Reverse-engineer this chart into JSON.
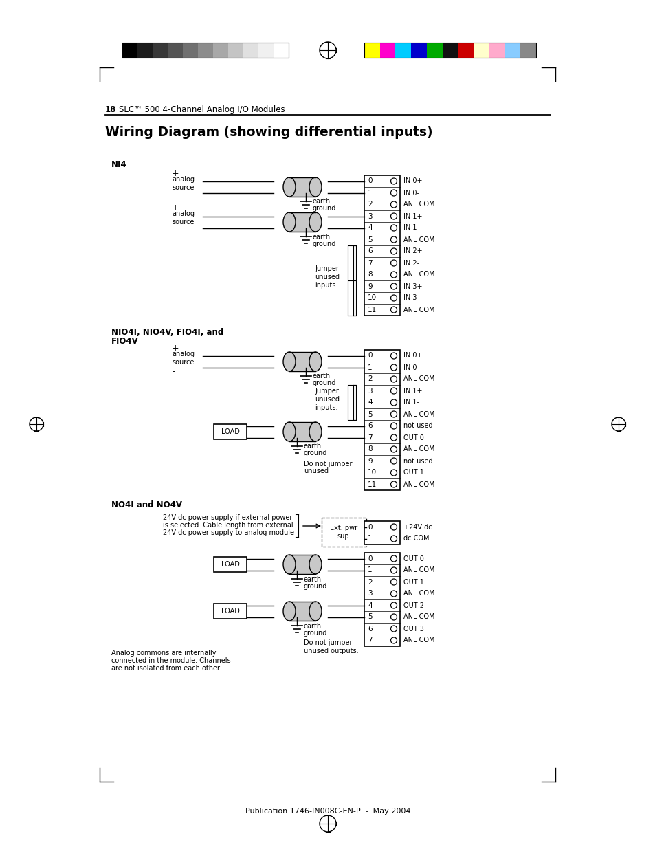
{
  "title": "Wiring Diagram (showing differential inputs)",
  "page_header_num": "18",
  "page_header_text": "SLC™ 500 4-Channel Analog I/O Modules",
  "page_footer": "Publication 1746-IN008C-EN-P  -  May 2004",
  "background_color": "#ffffff",
  "section1_label": "NI4",
  "section2_label": "NIO4I, NIO4V, FIO4I, and\nFIO4V",
  "section3_label": "NO4I and NO4V",
  "ni4_terminals": [
    "0",
    "1",
    "2",
    "3",
    "4",
    "5",
    "6",
    "7",
    "8",
    "9",
    "10",
    "11"
  ],
  "ni4_labels": [
    "IN 0+",
    "IN 0-",
    "ANL COM",
    "IN 1+",
    "IN 1-",
    "ANL COM",
    "IN 2+",
    "IN 2-",
    "ANL COM",
    "IN 3+",
    "IN 3-",
    "ANL COM"
  ],
  "nio4_terminals": [
    "0",
    "1",
    "2",
    "3",
    "4",
    "5",
    "6",
    "7",
    "8",
    "9",
    "10",
    "11"
  ],
  "nio4_labels": [
    "IN 0+",
    "IN 0-",
    "ANL COM",
    "IN 1+",
    "IN 1-",
    "ANL COM",
    "not used",
    "OUT 0",
    "ANL COM",
    "not used",
    "OUT 1",
    "ANL COM"
  ],
  "no4_power_terminals": [
    "0",
    "1"
  ],
  "no4_power_labels": [
    "+24V dc",
    "dc COM"
  ],
  "no4_terminals": [
    "0",
    "1",
    "2",
    "3",
    "4",
    "5",
    "6",
    "7"
  ],
  "no4_labels": [
    "OUT 0",
    "ANL COM",
    "OUT 1",
    "ANL COM",
    "OUT 2",
    "ANL COM",
    "OUT 3",
    "ANL COM"
  ],
  "gray_colors": [
    "#000000",
    "#1c1c1c",
    "#383838",
    "#545454",
    "#707070",
    "#8c8c8c",
    "#a8a8a8",
    "#c4c4c4",
    "#e0e0e0",
    "#f0f0f0",
    "#ffffff"
  ],
  "color_colors": [
    "#ffff00",
    "#ff00cc",
    "#00ccff",
    "#0000cc",
    "#00aa00",
    "#111111",
    "#cc0000",
    "#ffffcc",
    "#ffaacc",
    "#88ccff",
    "#888888"
  ]
}
